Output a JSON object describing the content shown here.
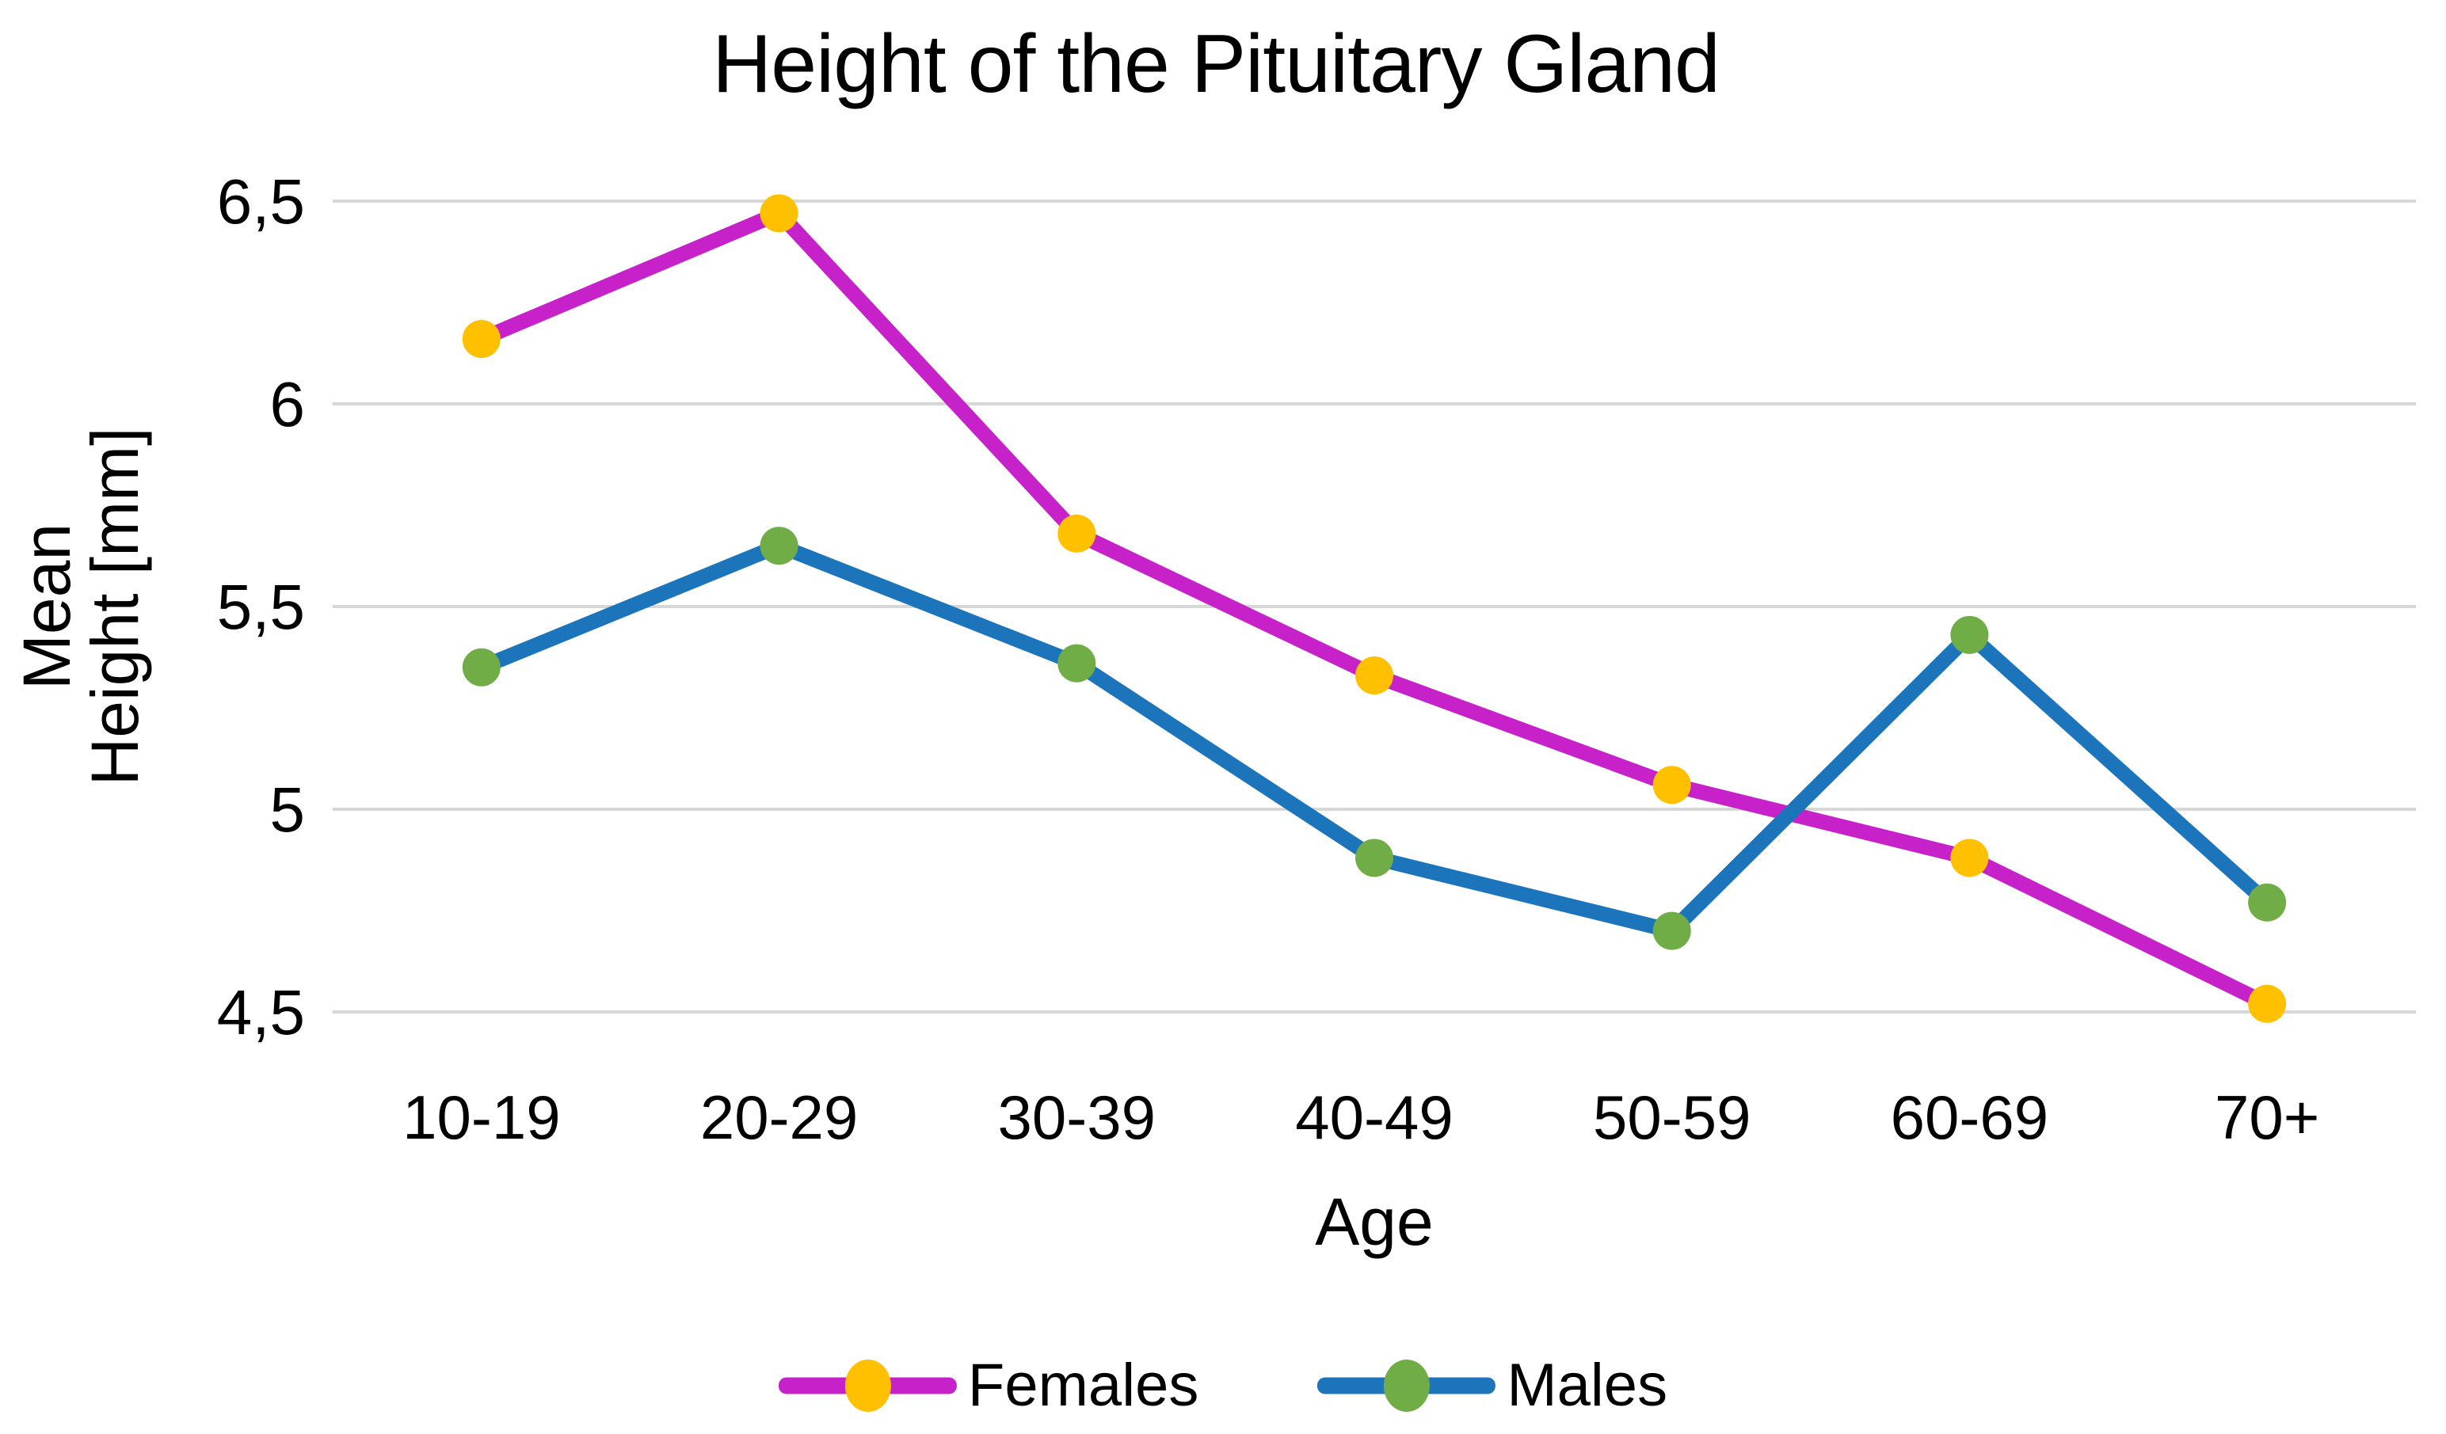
{
  "chart_data": {
    "type": "line",
    "title": "Height of the Pituitary Gland",
    "xlabel": "Age",
    "ylabel_lines": [
      "Mean",
      "Height [mm]"
    ],
    "categories": [
      "10-19",
      "20-29",
      "30-39",
      "40-49",
      "50-59",
      "60-69",
      "70+"
    ],
    "series": [
      {
        "name": "Females",
        "values": [
          6.16,
          6.47,
          5.68,
          5.33,
          5.06,
          4.88,
          4.52
        ],
        "line_color": "#C722C9",
        "marker_color": "#FFC000"
      },
      {
        "name": "Males",
        "values": [
          5.35,
          5.65,
          5.36,
          4.88,
          4.7,
          5.43,
          4.77
        ],
        "line_color": "#1C75BB",
        "marker_color": "#70AD47"
      }
    ],
    "ylim": [
      4.5,
      6.5
    ],
    "yticks": [
      {
        "value": 6.5,
        "label": "6,5"
      },
      {
        "value": 6.0,
        "label": "6"
      },
      {
        "value": 5.5,
        "label": "5,5"
      },
      {
        "value": 5.0,
        "label": "5"
      },
      {
        "value": 4.5,
        "label": "4,5"
      }
    ],
    "decimal_separator": ",",
    "grid": "horizontal",
    "gridline_color": "#D7D7D7",
    "background_color": "#FFFFFF",
    "text_color": "#000000",
    "legend_position": "bottom"
  }
}
